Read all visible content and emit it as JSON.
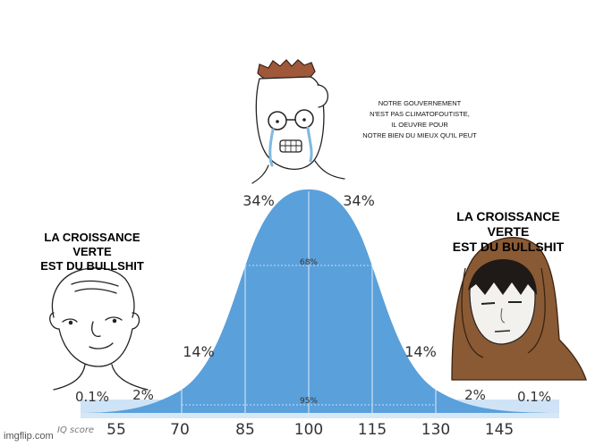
{
  "captions": {
    "left": [
      "LA CROISSANCE",
      "VERTE",
      "EST DU BULLSHIT"
    ],
    "middle": [
      "NOTRE GOUVERNEMENT",
      "N'EST PAS CLIMATOFOUTISTE,",
      "IL OEUVRE POUR",
      "NOTRE BIEN DU MIEUX QU'IL PEUT"
    ],
    "right": [
      "LA CROISSANCE",
      "VERTE",
      "EST DU BULLSHIT"
    ]
  },
  "curve": {
    "color": "#5aa0db",
    "percentages": {
      "inner_left": "34%",
      "inner_right": "34%",
      "mid_left": "14%",
      "mid_right": "14%",
      "outer_left": "2%",
      "outer_right": "2%",
      "tail_left": "0.1%",
      "tail_right": "0.1%",
      "band_68": "68%",
      "band_95": "95%"
    },
    "axis_title": "IQ score",
    "axis_ticks": [
      "55",
      "70",
      "85",
      "100",
      "115",
      "130",
      "145"
    ]
  },
  "characters": {
    "left": "wojak-simple",
    "middle": "wojak-crying-glasses",
    "right": "hooded-figure"
  },
  "watermark": "imgflip.com"
}
